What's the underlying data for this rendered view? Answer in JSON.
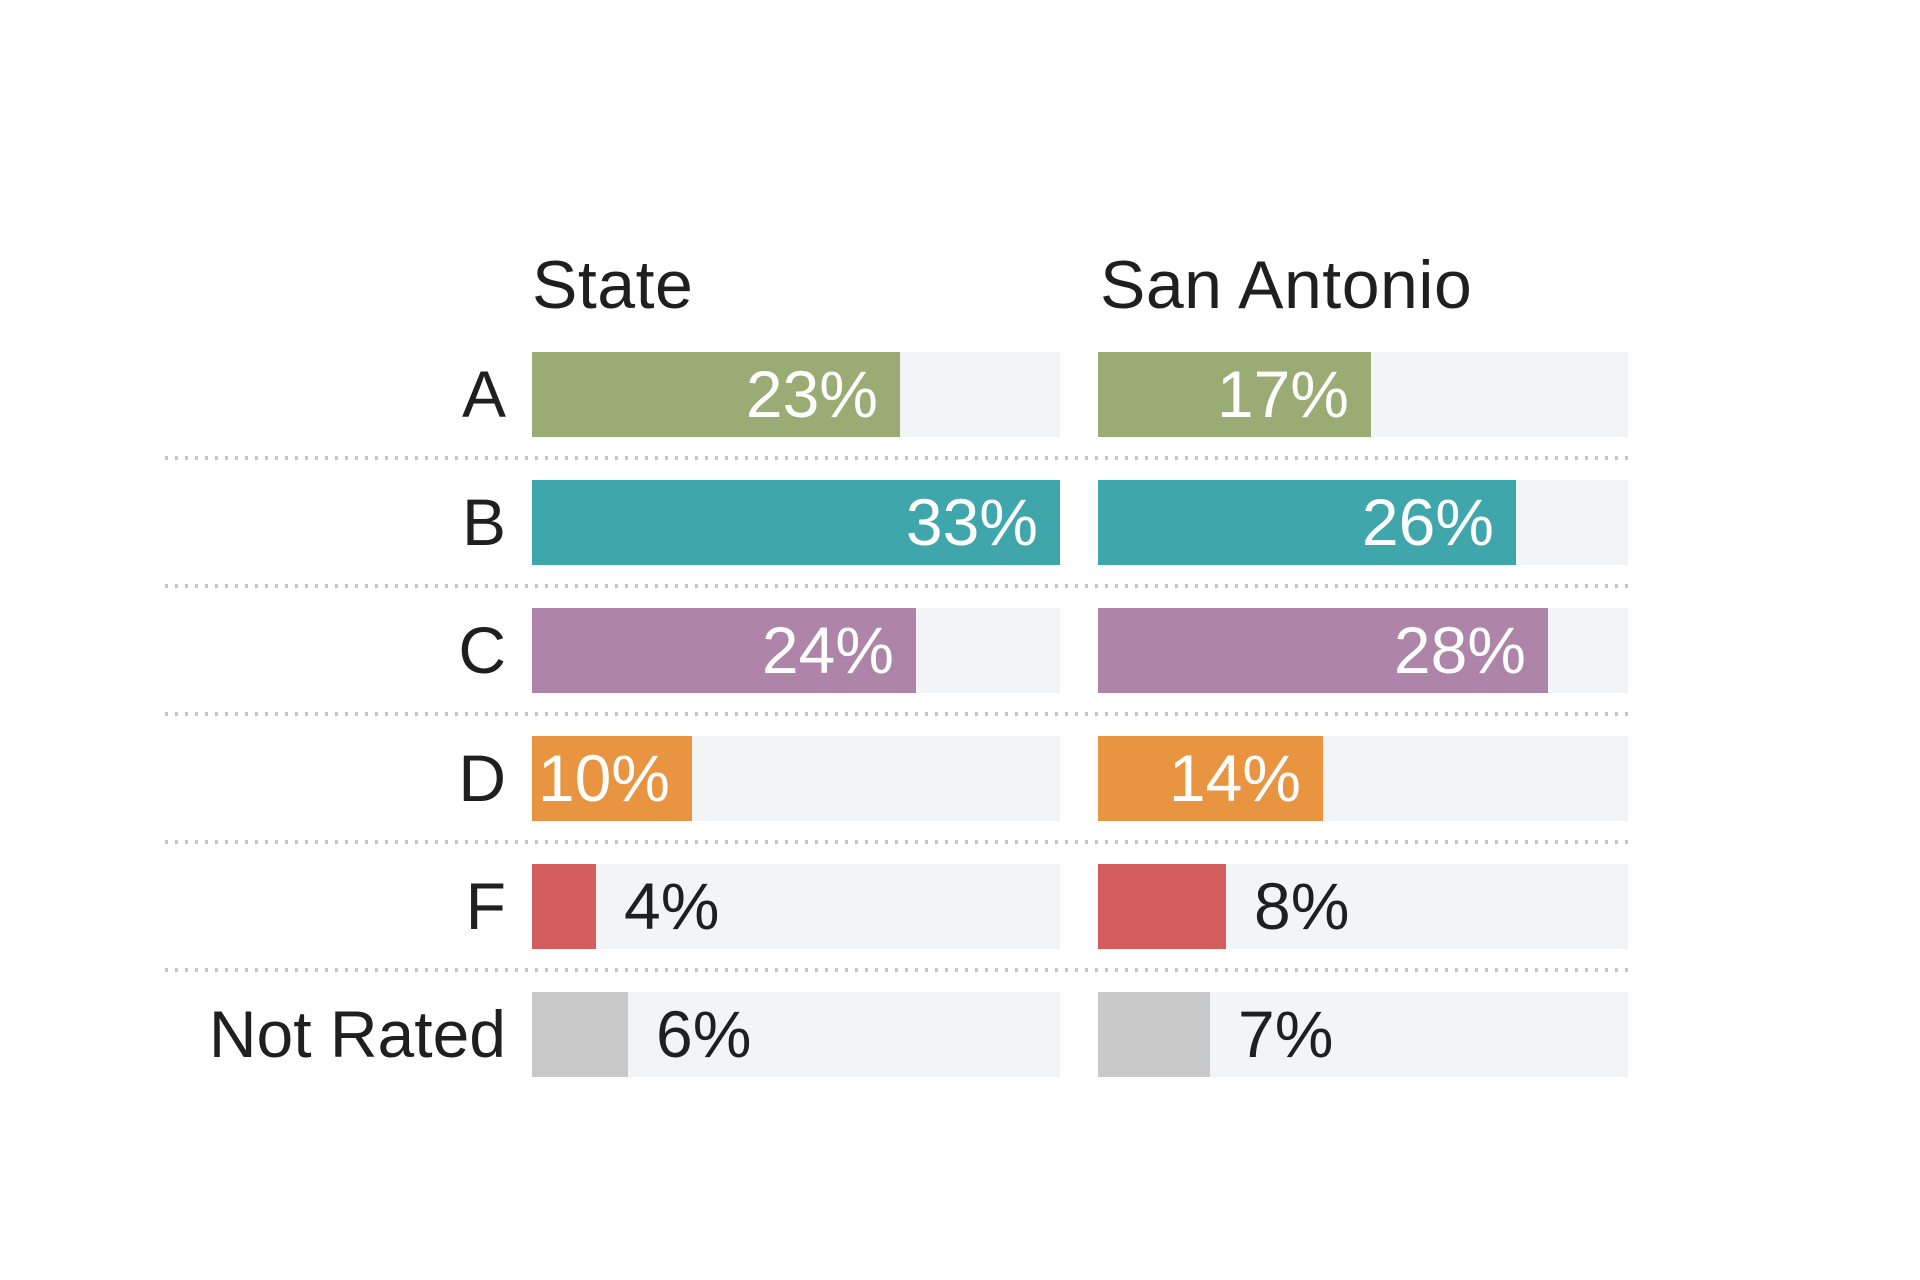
{
  "chart_data": {
    "type": "bar",
    "orientation": "horizontal",
    "title": "",
    "categories": [
      "A",
      "B",
      "C",
      "D",
      "F",
      "Not Rated"
    ],
    "series": [
      {
        "name": "State",
        "values": [
          23,
          33,
          24,
          10,
          4,
          6
        ],
        "display_values": [
          "23%",
          "33%",
          "24%",
          "10%",
          "4%",
          "6%"
        ]
      },
      {
        "name": "San Antonio",
        "values": [
          17,
          26,
          28,
          14,
          8,
          7
        ],
        "display_values": [
          "17%",
          "26%",
          "28%",
          "14%",
          "8%",
          "7%"
        ]
      }
    ],
    "value_suffix": "%",
    "xlim": [
      0,
      33
    ],
    "scale_max": 33,
    "label_inside_min": 10,
    "legend_position": "none",
    "grid": "dotted-row-separators",
    "category_colors": {
      "A": "#9aab74",
      "B": "#3fa7ab",
      "C": "#ae84a9",
      "D": "#e99440",
      "F": "#d45d5e",
      "Not Rated": "#c9c9c9"
    },
    "track_color": "#f2f4f6",
    "separator_color": "#c6c6c6",
    "text_color": "#1f1f1f",
    "inside_label_color": "#ffffff"
  }
}
